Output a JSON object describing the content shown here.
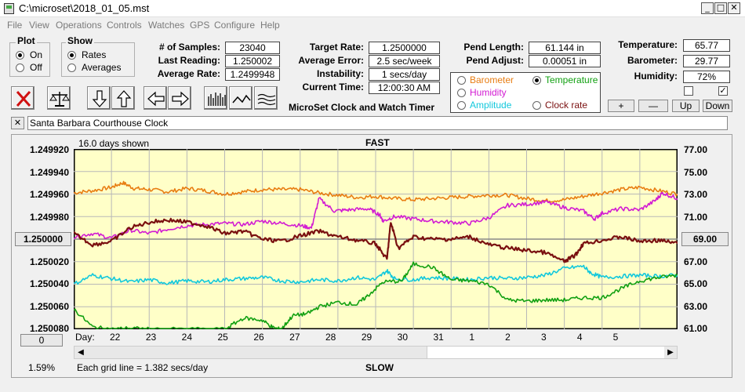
{
  "window": {
    "title": "C:\\microset\\2018_01_05.mst"
  },
  "menu": [
    "File",
    "View",
    "Operations",
    "Controls",
    "Watches",
    "GPS",
    "Configure",
    "Help"
  ],
  "plot_group": {
    "title": "Plot",
    "on": "On",
    "off": "Off",
    "selected": "On"
  },
  "show_group": {
    "title": "Show",
    "rates": "Rates",
    "averages": "Averages",
    "selected": "Rates"
  },
  "stats": {
    "samples_label": "# of Samples:",
    "samples": "23040",
    "last_label": "Last Reading:",
    "last": "1.250002",
    "avg_label": "Average Rate:",
    "avg": "1.2499948"
  },
  "rates": {
    "target_label": "Target Rate:",
    "target": "1.2500000",
    "error_label": "Average Error:",
    "error": "2.5 sec/week",
    "instab_label": "Instability:",
    "instab": "1 secs/day",
    "time_label": "Current Time:",
    "time": "12:00:30 AM"
  },
  "app_title": "MicroSet Clock and Watch Timer",
  "pend": {
    "length_label": "Pend Length:",
    "length": "61.144 in",
    "adjust_label": "Pend Adjust:",
    "adjust": "0.00051 in"
  },
  "sensors": {
    "temp_label": "Temperature:",
    "temp": "65.77",
    "baro_label": "Barometer:",
    "baro": "29.77",
    "hum_label": "Humidity:",
    "hum": "72%"
  },
  "overlay_options": [
    {
      "label": "Barometer",
      "color": "#e87d12",
      "selected": false
    },
    {
      "label": "Temperature",
      "color": "#11a011",
      "selected": true
    },
    {
      "label": "Humidity",
      "color": "#d21bd2",
      "selected": false
    },
    {
      "label": "Clock rate",
      "color": "#7a1010",
      "selected": false
    },
    {
      "label": "Amplitude",
      "color": "#12c8dc",
      "selected": false
    }
  ],
  "scale_buttons": {
    "plus": "+",
    "minus": "—",
    "up": "Up",
    "down": "Down"
  },
  "checkboxes": [
    {
      "checked": false
    },
    {
      "checked": true
    }
  ],
  "note": {
    "close": "✕",
    "text": "Santa Barbara Courthouse Clock"
  },
  "graph": {
    "days_shown": "16.0 days shown",
    "fast": "FAST",
    "slow": "SLOW",
    "left_ticks": [
      "1.249920",
      "1.249940",
      "1.249960",
      "1.249980",
      "1.250000",
      "1.250020",
      "1.250040",
      "1.250060",
      "1.250080"
    ],
    "center_value": "1.250000",
    "right_ticks": [
      "77.00",
      "75.00",
      "73.00",
      "71.00",
      "69.00",
      "67.00",
      "65.00",
      "63.00",
      "61.00"
    ],
    "right_center": "69.00",
    "day_label": "Day:",
    "days": [
      "22",
      "23",
      "24",
      "25",
      "26",
      "27",
      "28",
      "29",
      "30",
      "31",
      "1",
      "2",
      "3",
      "4",
      "5"
    ],
    "offset_button": "0",
    "percent": "1.59%",
    "grid_note": "Each grid line = 1.382 secs/day"
  },
  "colors": {
    "plot_bg": "#ffffc8",
    "barometer": "#e87d12",
    "temperature": "#11a011",
    "humidity": "#d21bd2",
    "clock_rate": "#7a1010",
    "amplitude": "#12c8dc"
  },
  "chart_data": {
    "type": "line",
    "x_unit": "days",
    "xlim": [
      0,
      16
    ],
    "y_left": {
      "ylim": [
        1.24992,
        1.25008
      ],
      "inverted": true
    },
    "y_right": {
      "ylim": [
        61,
        77
      ]
    },
    "series": [
      {
        "name": "Barometer",
        "axis": "right",
        "color": "#e87d12",
        "points": [
          [
            0,
            73.1
          ],
          [
            0.5,
            73.3
          ],
          [
            1,
            73.6
          ],
          [
            1.3,
            74.0
          ],
          [
            1.6,
            73.5
          ],
          [
            2,
            73.4
          ],
          [
            2.5,
            73.2
          ],
          [
            3,
            73.5
          ],
          [
            3.5,
            73.3
          ],
          [
            4,
            73.0
          ],
          [
            4.5,
            73.2
          ],
          [
            5,
            73.4
          ],
          [
            5.5,
            73.4
          ],
          [
            6,
            73.4
          ],
          [
            6.5,
            73.1
          ],
          [
            7,
            72.9
          ],
          [
            7.5,
            72.7
          ],
          [
            8,
            72.8
          ],
          [
            8.5,
            72.6
          ],
          [
            9,
            72.5
          ],
          [
            9.5,
            72.6
          ],
          [
            10,
            72.7
          ],
          [
            10.5,
            72.8
          ],
          [
            11,
            72.9
          ],
          [
            11.5,
            72.9
          ],
          [
            12,
            72.6
          ],
          [
            12.5,
            72.4
          ],
          [
            13,
            72.5
          ],
          [
            13.5,
            72.8
          ],
          [
            14,
            73.1
          ],
          [
            14.5,
            73.4
          ],
          [
            15,
            73.6
          ],
          [
            15.5,
            73.3
          ],
          [
            16,
            73.0
          ]
        ]
      },
      {
        "name": "Humidity",
        "axis": "right",
        "color": "#d21bd2",
        "points": [
          [
            0,
            69.2
          ],
          [
            0.5,
            69.5
          ],
          [
            1,
            69.1
          ],
          [
            1.5,
            69.8
          ],
          [
            2,
            69.5
          ],
          [
            2.5,
            69.9
          ],
          [
            3,
            70.2
          ],
          [
            3.5,
            70.3
          ],
          [
            4,
            70.4
          ],
          [
            4.5,
            70.3
          ],
          [
            5,
            70.6
          ],
          [
            5.5,
            70.4
          ],
          [
            6,
            70.2
          ],
          [
            6.3,
            70.0
          ],
          [
            6.5,
            72.6
          ],
          [
            6.9,
            71.5
          ],
          [
            7.3,
            71.6
          ],
          [
            7.8,
            71.7
          ],
          [
            8.1,
            71.2
          ],
          [
            8.2,
            70.6
          ],
          [
            8.5,
            71.0
          ],
          [
            9,
            70.8
          ],
          [
            9.5,
            70.6
          ],
          [
            10,
            70.5
          ],
          [
            10.5,
            70.4
          ],
          [
            11,
            70.9
          ],
          [
            11.5,
            72.0
          ],
          [
            12,
            72.1
          ],
          [
            12.5,
            72.3
          ],
          [
            13,
            71.8
          ],
          [
            13.5,
            71.5
          ],
          [
            13.8,
            70.8
          ],
          [
            14,
            71.3
          ],
          [
            14.5,
            71.7
          ],
          [
            15,
            71.6
          ],
          [
            15.4,
            72.4
          ],
          [
            15.6,
            73.1
          ],
          [
            16,
            72.6
          ]
        ]
      },
      {
        "name": "Clock rate",
        "axis": "left",
        "color": "#7a1010",
        "points": [
          [
            0,
            1.249995
          ],
          [
            0.5,
            1.250005
          ],
          [
            1,
            1.250002
          ],
          [
            1.5,
            1.24999
          ],
          [
            2,
            1.249985
          ],
          [
            2.5,
            1.249983
          ],
          [
            3,
            1.249985
          ],
          [
            3.5,
            1.249988
          ],
          [
            4,
            1.249995
          ],
          [
            4.5,
            1.249993
          ],
          [
            5,
            1.25
          ],
          [
            5.5,
            1.250002
          ],
          [
            6,
            1.249997
          ],
          [
            6.5,
            1.249993
          ],
          [
            7,
            1.249998
          ],
          [
            7.5,
            1.250001
          ],
          [
            8,
            1.250004
          ],
          [
            8.3,
            1.250018
          ],
          [
            8.4,
            1.249985
          ],
          [
            8.6,
            1.250008
          ],
          [
            9,
            1.249998
          ],
          [
            9.5,
            1.25
          ],
          [
            10,
            1.25
          ],
          [
            10.5,
            1.249998
          ],
          [
            11,
            1.250005
          ],
          [
            11.5,
            1.250008
          ],
          [
            12,
            1.25001
          ],
          [
            12.5,
            1.250012
          ],
          [
            13,
            1.25002
          ],
          [
            13.3,
            1.250014
          ],
          [
            13.5,
            1.250004
          ],
          [
            14,
            1.250001
          ],
          [
            14.5,
            1.249998
          ],
          [
            15,
            1.250002
          ],
          [
            15.5,
            1.250001
          ],
          [
            16,
            1.250004
          ]
        ]
      },
      {
        "name": "Amplitude",
        "axis": "right",
        "color": "#12c8dc",
        "points": [
          [
            0,
            65.0
          ],
          [
            0.5,
            65.8
          ],
          [
            1,
            65.5
          ],
          [
            1.5,
            65.2
          ],
          [
            2,
            65.4
          ],
          [
            2.5,
            65.1
          ],
          [
            3,
            65.3
          ],
          [
            3.5,
            65.2
          ],
          [
            4,
            65.4
          ],
          [
            4.5,
            65.5
          ],
          [
            5,
            65.6
          ],
          [
            5.5,
            65.3
          ],
          [
            6,
            65.2
          ],
          [
            6.5,
            65.4
          ],
          [
            7,
            65.3
          ],
          [
            7.5,
            65.6
          ],
          [
            8,
            65.4
          ],
          [
            8.3,
            66.2
          ],
          [
            8.5,
            65.5
          ],
          [
            9,
            65.4
          ],
          [
            9.5,
            65.6
          ],
          [
            10,
            65.5
          ],
          [
            10.5,
            65.4
          ],
          [
            11,
            65.6
          ],
          [
            11.5,
            65.5
          ],
          [
            12,
            65.6
          ],
          [
            12.5,
            65.8
          ],
          [
            13,
            66.4
          ],
          [
            13.5,
            66.6
          ],
          [
            13.7,
            66.0
          ],
          [
            14,
            65.6
          ],
          [
            14.5,
            65.7
          ],
          [
            15,
            65.8
          ],
          [
            15.5,
            65.7
          ],
          [
            16,
            65.8
          ]
        ]
      },
      {
        "name": "Temperature",
        "axis": "right",
        "color": "#11a011",
        "points": [
          [
            0,
            62.8
          ],
          [
            0.5,
            61.2
          ],
          [
            1,
            61.0
          ],
          [
            1.5,
            61.1
          ],
          [
            2,
            61.0
          ],
          [
            3,
            61.0
          ],
          [
            4,
            61.0
          ],
          [
            4.5,
            62.0
          ],
          [
            5,
            61.8
          ],
          [
            5.3,
            61.1
          ],
          [
            5.5,
            61.0
          ],
          [
            5.8,
            62.2
          ],
          [
            6.2,
            62.4
          ],
          [
            6.5,
            63.0
          ],
          [
            7,
            63.4
          ],
          [
            7.5,
            63.2
          ],
          [
            7.8,
            64.0
          ],
          [
            8.2,
            65.2
          ],
          [
            8.7,
            65.3
          ],
          [
            9,
            66.8
          ],
          [
            9.5,
            66.5
          ],
          [
            10,
            65.4
          ],
          [
            10.5,
            65.3
          ],
          [
            11,
            65.0
          ],
          [
            11.5,
            63.6
          ],
          [
            12,
            63.5
          ],
          [
            12.5,
            63.6
          ],
          [
            13,
            63.6
          ],
          [
            13.5,
            63.8
          ],
          [
            14,
            63.8
          ],
          [
            14.5,
            64.6
          ],
          [
            15,
            65.3
          ],
          [
            15.5,
            65.6
          ],
          [
            16,
            65.8
          ]
        ]
      }
    ]
  }
}
